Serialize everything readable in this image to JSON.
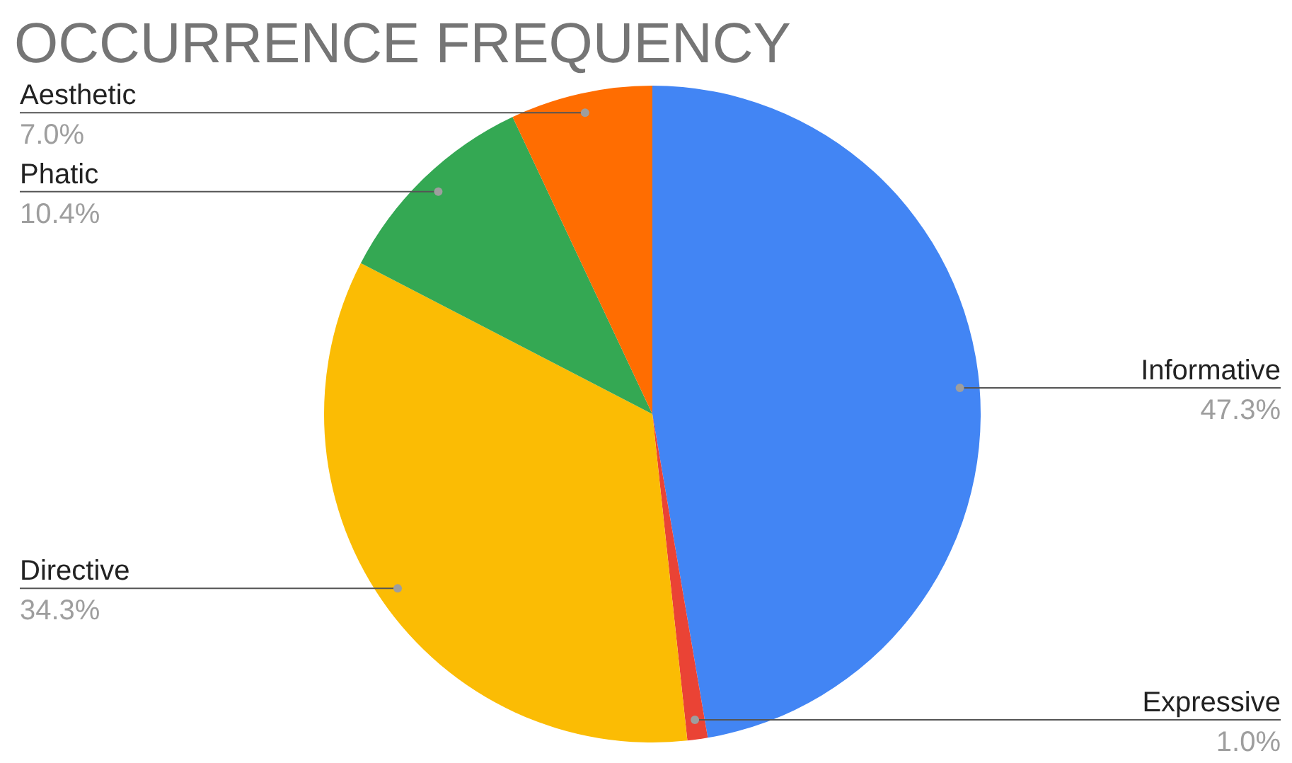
{
  "chart_data": {
    "type": "pie",
    "title": "OCCURRENCE FREQUENCY",
    "categories": [
      "Informative",
      "Expressive",
      "Directive",
      "Phatic",
      "Aesthetic"
    ],
    "values": [
      47.3,
      1.0,
      34.3,
      10.4,
      7.0
    ],
    "value_labels": [
      "47.3%",
      "1.0%",
      "34.3%",
      "10.4%",
      "7.0%"
    ],
    "colors": [
      "#4285f4",
      "#ea4335",
      "#fbbc04",
      "#34a853",
      "#ff6d01"
    ],
    "legend": false
  }
}
